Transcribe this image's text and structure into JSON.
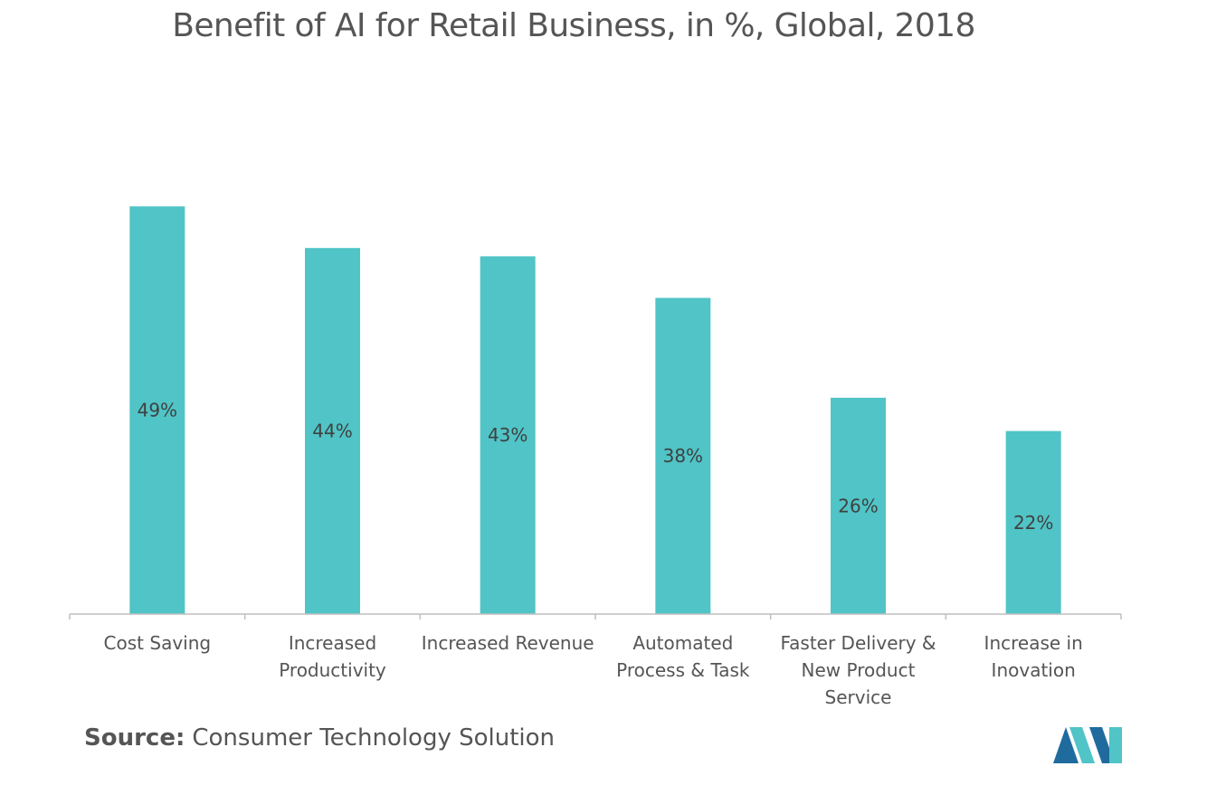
{
  "title": "Benefit of AI for Retail Business, in %, Global, 2018",
  "source": {
    "label": "Source:",
    "text": "Consumer Technology Solution"
  },
  "colors": {
    "bar": "#50c4c6",
    "axis": "#bfbfbf",
    "text": "#555555",
    "label": "#404040",
    "logo_dark": "#1f6b9e",
    "logo_light": "#50c4c6"
  },
  "chart_data": {
    "type": "bar",
    "title": "Benefit of AI for Retail Business, in %, Global, 2018",
    "categories": [
      [
        "Cost Saving"
      ],
      [
        "Increased",
        "Productivity"
      ],
      [
        "Increased Revenue"
      ],
      [
        "Automated",
        "Process & Task"
      ],
      [
        "Faster Delivery &",
        "New Product",
        "Service"
      ],
      [
        "Increase in",
        "Inovation"
      ]
    ],
    "values": [
      49,
      44,
      43,
      38,
      26,
      22
    ],
    "data_labels": [
      "49%",
      "44%",
      "43%",
      "38%",
      "26%",
      "22%"
    ],
    "ylim": [
      0,
      55
    ],
    "grid": false,
    "legend": "none"
  }
}
